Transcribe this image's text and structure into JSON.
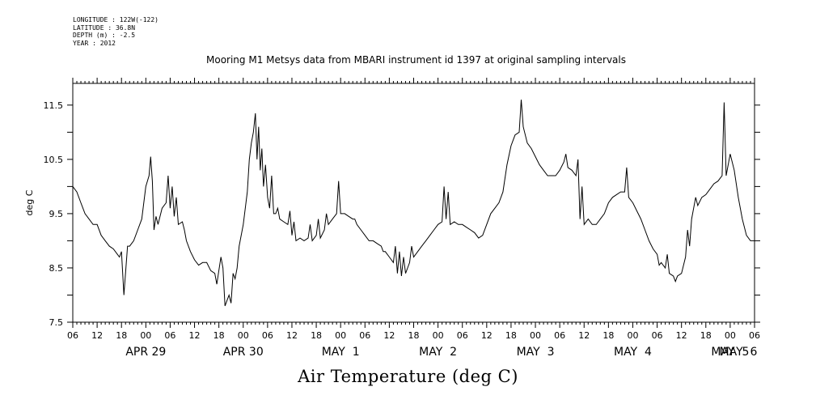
{
  "meta": {
    "longitude": "LONGITUDE : 122W(-122)",
    "latitude": "LATITUDE : 36.8N",
    "depth": "DEPTH (m) : -2.5",
    "year": "YEAR : 2012"
  },
  "chart_data": {
    "type": "line",
    "title": "Mooring M1 Metsys data from MBARI instrument id 1397 at original sampling intervals",
    "xlabel": "Air Temperature (deg C)",
    "ylabel": "deg C",
    "ylim": [
      7.5,
      11.9
    ],
    "xlim_hours": [
      6,
      174
    ],
    "y_ticks": [
      "7.5",
      "8.5",
      "9.5",
      "10.5",
      "11.5"
    ],
    "x_hour_ticks": [
      "06",
      "12",
      "18",
      "00",
      "06",
      "12",
      "18",
      "00",
      "06",
      "12",
      "18",
      "00",
      "06",
      "12",
      "18",
      "00",
      "06",
      "12",
      "18",
      "00",
      "06",
      "12",
      "18",
      "00",
      "06",
      "12",
      "18",
      "00",
      "06"
    ],
    "x_date_labels": [
      {
        "label": "APR 29",
        "hour": 24
      },
      {
        "label": "APR 30",
        "hour": 48
      },
      {
        "label": "MAY  1",
        "hour": 72
      },
      {
        "label": "MAY  2",
        "hour": 96
      },
      {
        "label": "MAY  3",
        "hour": 120
      },
      {
        "label": "MAY  4",
        "hour": 144
      },
      {
        "label": "MAY  5",
        "hour": 168
      },
      {
        "label": "MAY  6",
        "hour": 192
      }
    ],
    "grid": false,
    "series": [
      {
        "color": "#000000",
        "points": [
          [
            6,
            10.0
          ],
          [
            7,
            9.9
          ],
          [
            8,
            9.7
          ],
          [
            9,
            9.5
          ],
          [
            10,
            9.4
          ],
          [
            11,
            9.3
          ],
          [
            12,
            9.3
          ],
          [
            13,
            9.1
          ],
          [
            14,
            9.0
          ],
          [
            15,
            8.9
          ],
          [
            16,
            8.85
          ],
          [
            17,
            8.75
          ],
          [
            17.5,
            8.7
          ],
          [
            18,
            8.8
          ],
          [
            18.6,
            8.0
          ],
          [
            19.2,
            8.6
          ],
          [
            19.5,
            8.9
          ],
          [
            20,
            8.9
          ],
          [
            21,
            9.0
          ],
          [
            22,
            9.2
          ],
          [
            23,
            9.4
          ],
          [
            24,
            10.0
          ],
          [
            24.8,
            10.2
          ],
          [
            25.2,
            10.55
          ],
          [
            25.6,
            10.1
          ],
          [
            26,
            9.2
          ],
          [
            26.5,
            9.45
          ],
          [
            27,
            9.3
          ],
          [
            28,
            9.6
          ],
          [
            29,
            9.7
          ],
          [
            29.5,
            10.2
          ],
          [
            30,
            9.6
          ],
          [
            30.5,
            10.0
          ],
          [
            31,
            9.45
          ],
          [
            31.5,
            9.8
          ],
          [
            32,
            9.3
          ],
          [
            33,
            9.35
          ],
          [
            33.5,
            9.2
          ],
          [
            34,
            9.0
          ],
          [
            35,
            8.8
          ],
          [
            36,
            8.65
          ],
          [
            37,
            8.55
          ],
          [
            38,
            8.6
          ],
          [
            39,
            8.6
          ],
          [
            40,
            8.45
          ],
          [
            41,
            8.4
          ],
          [
            41.5,
            8.2
          ],
          [
            42,
            8.45
          ],
          [
            42.5,
            8.7
          ],
          [
            43,
            8.5
          ],
          [
            43.5,
            7.8
          ],
          [
            44,
            7.9
          ],
          [
            44.5,
            8.0
          ],
          [
            45,
            7.85
          ],
          [
            45.5,
            8.4
          ],
          [
            46,
            8.3
          ],
          [
            46.5,
            8.5
          ],
          [
            47,
            8.9
          ],
          [
            48,
            9.3
          ],
          [
            49,
            9.9
          ],
          [
            49.5,
            10.5
          ],
          [
            50,
            10.8
          ],
          [
            50.5,
            11.0
          ],
          [
            51,
            11.35
          ],
          [
            51.4,
            10.5
          ],
          [
            51.8,
            11.1
          ],
          [
            52.2,
            10.3
          ],
          [
            52.6,
            10.7
          ],
          [
            53,
            10.0
          ],
          [
            53.5,
            10.4
          ],
          [
            54,
            9.8
          ],
          [
            54.5,
            9.6
          ],
          [
            55,
            10.2
          ],
          [
            55.5,
            9.5
          ],
          [
            56,
            9.5
          ],
          [
            56.5,
            9.6
          ],
          [
            57,
            9.4
          ],
          [
            58,
            9.35
          ],
          [
            59,
            9.3
          ],
          [
            59.5,
            9.55
          ],
          [
            60,
            9.1
          ],
          [
            60.5,
            9.35
          ],
          [
            61,
            9.0
          ],
          [
            62,
            9.05
          ],
          [
            63,
            9.0
          ],
          [
            64,
            9.05
          ],
          [
            64.5,
            9.3
          ],
          [
            65,
            9.0
          ],
          [
            66,
            9.1
          ],
          [
            66.5,
            9.4
          ],
          [
            67,
            9.05
          ],
          [
            68,
            9.2
          ],
          [
            68.5,
            9.5
          ],
          [
            69,
            9.3
          ],
          [
            70,
            9.4
          ],
          [
            71,
            9.5
          ],
          [
            71.5,
            10.1
          ],
          [
            72,
            9.5
          ],
          [
            73,
            9.5
          ],
          [
            74,
            9.45
          ],
          [
            75,
            9.4
          ],
          [
            75.5,
            9.4
          ],
          [
            76,
            9.3
          ],
          [
            77,
            9.2
          ],
          [
            78,
            9.1
          ],
          [
            79,
            9.0
          ],
          [
            80,
            9.0
          ],
          [
            81,
            8.95
          ],
          [
            82,
            8.9
          ],
          [
            82.5,
            8.8
          ],
          [
            83,
            8.8
          ],
          [
            84,
            8.7
          ],
          [
            85,
            8.6
          ],
          [
            85.5,
            8.9
          ],
          [
            86,
            8.4
          ],
          [
            86.5,
            8.8
          ],
          [
            87,
            8.35
          ],
          [
            87.5,
            8.7
          ],
          [
            88,
            8.4
          ],
          [
            88.5,
            8.5
          ],
          [
            89,
            8.6
          ],
          [
            89.5,
            8.9
          ],
          [
            90,
            8.7
          ],
          [
            91,
            8.8
          ],
          [
            92,
            8.9
          ],
          [
            93,
            9.0
          ],
          [
            94,
            9.1
          ],
          [
            95,
            9.2
          ],
          [
            96,
            9.3
          ],
          [
            97,
            9.35
          ],
          [
            97.5,
            10.0
          ],
          [
            98,
            9.4
          ],
          [
            98.5,
            9.9
          ],
          [
            99,
            9.3
          ],
          [
            100,
            9.35
          ],
          [
            101,
            9.3
          ],
          [
            102,
            9.3
          ],
          [
            103,
            9.25
          ],
          [
            104,
            9.2
          ],
          [
            105,
            9.15
          ],
          [
            106,
            9.05
          ],
          [
            107,
            9.1
          ],
          [
            108,
            9.3
          ],
          [
            109,
            9.5
          ],
          [
            110,
            9.6
          ],
          [
            111,
            9.7
          ],
          [
            112,
            9.9
          ],
          [
            113,
            10.4
          ],
          [
            114,
            10.75
          ],
          [
            115,
            10.95
          ],
          [
            116,
            11.0
          ],
          [
            116.5,
            11.6
          ],
          [
            117,
            11.1
          ],
          [
            118,
            10.8
          ],
          [
            119,
            10.7
          ],
          [
            120,
            10.55
          ],
          [
            121,
            10.4
          ],
          [
            122,
            10.3
          ],
          [
            123,
            10.2
          ],
          [
            124,
            10.2
          ],
          [
            125,
            10.2
          ],
          [
            126,
            10.3
          ],
          [
            127,
            10.45
          ],
          [
            127.5,
            10.6
          ],
          [
            128,
            10.35
          ],
          [
            129,
            10.3
          ],
          [
            130,
            10.2
          ],
          [
            130.5,
            10.5
          ],
          [
            131,
            9.4
          ],
          [
            131.5,
            10.0
          ],
          [
            132,
            9.3
          ],
          [
            133,
            9.4
          ],
          [
            134,
            9.3
          ],
          [
            135,
            9.3
          ],
          [
            136,
            9.4
          ],
          [
            137,
            9.5
          ],
          [
            138,
            9.7
          ],
          [
            139,
            9.8
          ],
          [
            140,
            9.85
          ],
          [
            141,
            9.9
          ],
          [
            142,
            9.9
          ],
          [
            142.5,
            10.35
          ],
          [
            143,
            9.8
          ],
          [
            144,
            9.7
          ],
          [
            145,
            9.55
          ],
          [
            146,
            9.4
          ],
          [
            147,
            9.2
          ],
          [
            148,
            9.0
          ],
          [
            149,
            8.85
          ],
          [
            150,
            8.75
          ],
          [
            150.5,
            8.55
          ],
          [
            151,
            8.6
          ],
          [
            152,
            8.5
          ],
          [
            152.5,
            8.75
          ],
          [
            153,
            8.4
          ],
          [
            154,
            8.35
          ],
          [
            154.5,
            8.25
          ],
          [
            155,
            8.35
          ],
          [
            156,
            8.4
          ],
          [
            157,
            8.7
          ],
          [
            157.5,
            9.2
          ],
          [
            158,
            8.9
          ],
          [
            158.5,
            9.4
          ],
          [
            159,
            9.6
          ],
          [
            159.5,
            9.8
          ],
          [
            160,
            9.65
          ],
          [
            161,
            9.8
          ],
          [
            162,
            9.85
          ],
          [
            163,
            9.95
          ],
          [
            164,
            10.05
          ],
          [
            165,
            10.1
          ],
          [
            166,
            10.2
          ],
          [
            166.5,
            11.55
          ],
          [
            167,
            10.2
          ],
          [
            168,
            10.6
          ],
          [
            169,
            10.3
          ],
          [
            170,
            9.8
          ],
          [
            171,
            9.4
          ],
          [
            172,
            9.1
          ],
          [
            173,
            9.0
          ],
          [
            174,
            9.0
          ]
        ]
      }
    ]
  }
}
